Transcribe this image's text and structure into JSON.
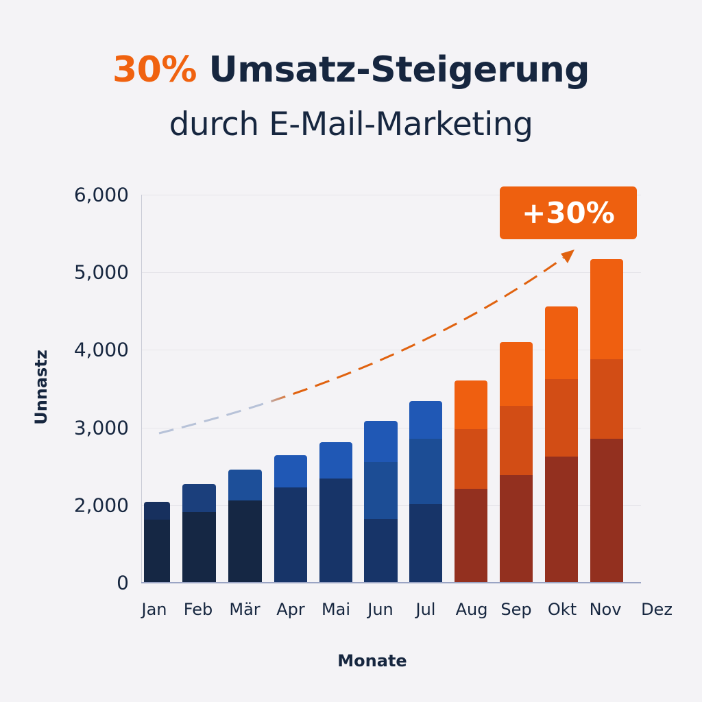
{
  "header": {
    "title_accent": "30%",
    "title_rest": " Umsatz-Steigerung",
    "subtitle": "durch E-Mail-Marketing"
  },
  "badge": {
    "label": "+30%"
  },
  "colors": {
    "accent": "#f0620f",
    "text": "#16263f",
    "blue_dark": "#152744",
    "blue_mid": "#173468",
    "blue_light": "#2058b5",
    "orange_dark": "#93301f",
    "orange_mid": "#d24d15",
    "orange_light": "#ef5f10",
    "trend_start": "#b7c2d8",
    "trend_end": "#e0620f"
  },
  "chart_data": {
    "type": "bar",
    "stacked": true,
    "title": "30% Umsatz-Steigerung durch E-Mail-Marketing",
    "xlabel": "Monate",
    "ylabel": "Unnastz",
    "categories": [
      "Jan",
      "Feb",
      "Mär",
      "Apr",
      "Mai",
      "Jun",
      "Jul",
      "Aug",
      "Sep",
      "Okt",
      "Nov",
      "Dez"
    ],
    "yticks": [
      "0",
      "2,000",
      "3,000",
      "4,000",
      "5,000",
      "6,000"
    ],
    "ylim": [
      0,
      6000
    ],
    "grid": true,
    "totals": [
      2040,
      2270,
      2460,
      2640,
      2810,
      3090,
      3340,
      3610,
      4100,
      4560,
      5170,
      null
    ],
    "segments": [
      [
        1630,
        410
      ],
      [
        1820,
        450
      ],
      [
        2060,
        400
      ],
      [
        2230,
        410
      ],
      [
        2340,
        470
      ],
      [
        1650,
        910,
        530
      ],
      [
        2020,
        840,
        480
      ],
      [
        2210,
        770,
        630
      ],
      [
        2390,
        890,
        820
      ],
      [
        2630,
        990,
        940
      ],
      [
        2860,
        1020,
        1290
      ],
      []
    ],
    "annotations": [
      {
        "type": "badge",
        "text": "+30%"
      },
      {
        "type": "dashed-trend-arrow",
        "from": "Jan",
        "to": "Nov"
      }
    ]
  }
}
